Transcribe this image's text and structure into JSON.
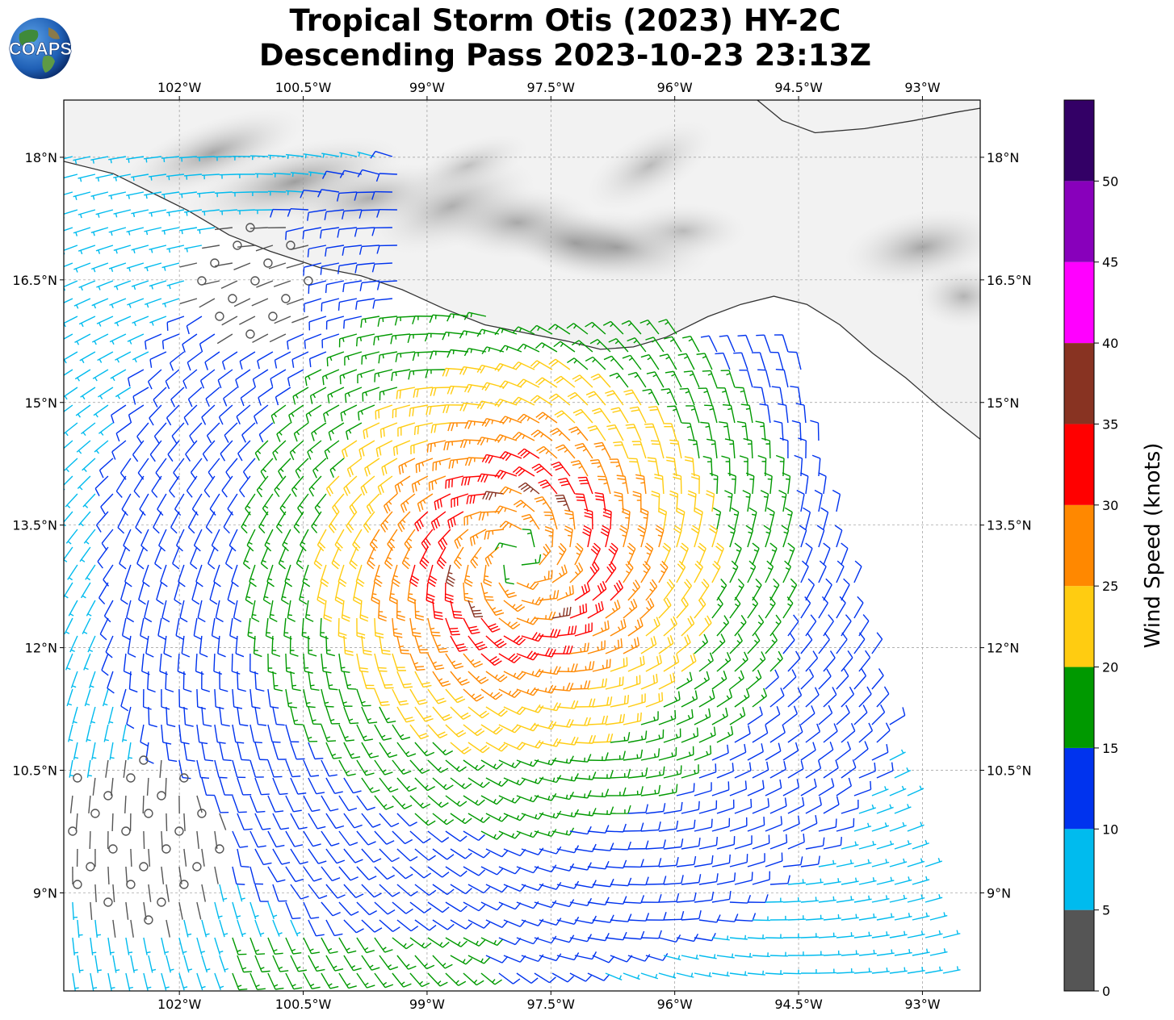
{
  "title": {
    "line1": "Tropical Storm Otis (2023) HY-2C",
    "line2": "Descending Pass 2023-10-23 23:13Z"
  },
  "logo": {
    "text": "COAPS",
    "icon": "globe-logo-icon"
  },
  "map": {
    "lon_range": [
      -103.4,
      -92.3
    ],
    "lat_range": [
      7.8,
      18.7
    ],
    "lon_ticks": [
      {
        "value": -102,
        "label": "102°W"
      },
      {
        "value": -100.5,
        "label": "100.5°W"
      },
      {
        "value": -99,
        "label": "99°W"
      },
      {
        "value": -97.5,
        "label": "97.5°W"
      },
      {
        "value": -96,
        "label": "96°W"
      },
      {
        "value": -94.5,
        "label": "94.5°W"
      },
      {
        "value": -93,
        "label": "93°W"
      }
    ],
    "lat_ticks": [
      {
        "value": 18,
        "label": "18°N"
      },
      {
        "value": 16.5,
        "label": "16.5°N"
      },
      {
        "value": 15,
        "label": "15°N"
      },
      {
        "value": 13.5,
        "label": "13.5°N"
      },
      {
        "value": 12,
        "label": "12°N"
      },
      {
        "value": 10.5,
        "label": "10.5°N"
      },
      {
        "value": 9,
        "label": "9°N"
      }
    ],
    "storm_center": {
      "lon": -97.9,
      "lat": 13.1
    },
    "grid": true
  },
  "colorbar": {
    "label": "Wind Speed (knots)",
    "unit": "knots",
    "bins": [
      {
        "min": 0,
        "max": 5,
        "color": "#555555"
      },
      {
        "min": 5,
        "max": 10,
        "color": "#00bbee"
      },
      {
        "min": 10,
        "max": 15,
        "color": "#0033ee"
      },
      {
        "min": 15,
        "max": 20,
        "color": "#009900"
      },
      {
        "min": 20,
        "max": 25,
        "color": "#ffcc11"
      },
      {
        "min": 25,
        "max": 30,
        "color": "#ff8800"
      },
      {
        "min": 30,
        "max": 35,
        "color": "#ff0000"
      },
      {
        "min": 35,
        "max": 40,
        "color": "#883322"
      },
      {
        "min": 40,
        "max": 45,
        "color": "#ff00ff"
      },
      {
        "min": 45,
        "max": 50,
        "color": "#8800bb"
      },
      {
        "min": 50,
        "max": 55,
        "color": "#330066"
      }
    ],
    "tick_labels": [
      "0",
      "5",
      "10",
      "15",
      "20",
      "25",
      "30",
      "35",
      "40",
      "45",
      "50"
    ]
  }
}
